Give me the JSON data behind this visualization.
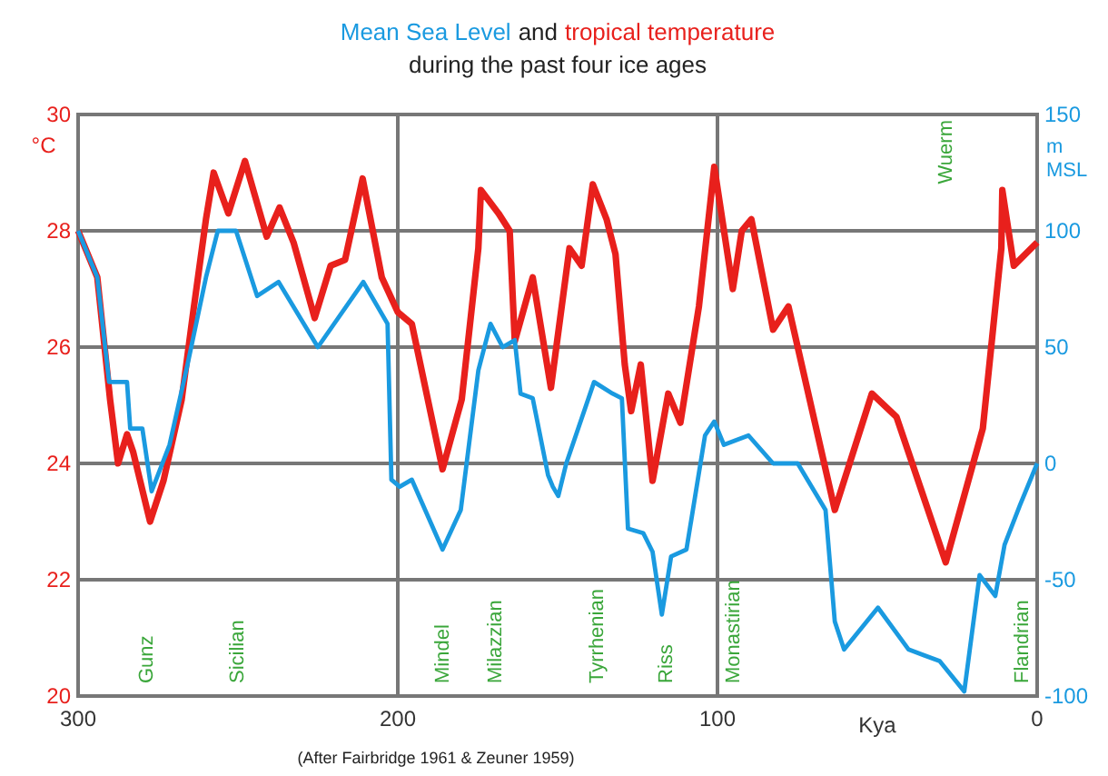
{
  "chart_data": {
    "type": "line",
    "title": "during the past four ice ages",
    "xlabel": "Kya",
    "ylabel": "°C",
    "y2label": "m MSL",
    "xlim": [
      300,
      0
    ],
    "xticks": [
      300,
      200,
      100,
      0
    ],
    "ylim": [
      20,
      30
    ],
    "yticks": [
      20,
      22,
      24,
      26,
      28,
      30
    ],
    "y2lim": [
      -100,
      150
    ],
    "y2ticks": [
      -100,
      -50,
      0,
      50,
      100,
      150
    ],
    "grid": true,
    "legend": "top",
    "line_style": "solid",
    "marker": "none",
    "series": [
      {
        "name": "tropical temperature",
        "color": "#e8201c",
        "x": [
          300,
          294,
          290,
          287.5,
          284.7,
          282.8,
          277.5,
          273.3,
          267.6,
          264,
          260,
          257.6,
          253,
          247.8,
          241,
          237,
          232.6,
          226,
          221,
          216.5,
          211,
          205,
          200,
          195.6,
          186,
          180,
          174.8,
          174,
          168.5,
          165,
          163.4,
          157.8,
          152.1,
          146.3,
          142.5,
          139,
          134.7,
          131.9,
          129,
          127,
          124,
          120.3,
          115.4,
          111.6,
          105.8,
          101,
          95.2,
          92.4,
          89.4,
          82.6,
          77.8,
          63.3,
          51.7,
          44,
          28.6,
          17,
          11.2,
          10.9,
          7.3,
          0
        ],
        "values": [
          28,
          27.2,
          25.1,
          24,
          24.5,
          24.2,
          23,
          23.7,
          25.1,
          26.6,
          28.2,
          29,
          28.3,
          29.2,
          27.9,
          28.4,
          27.8,
          26.5,
          27.4,
          27.5,
          28.9,
          27.2,
          26.6,
          26.4,
          23.9,
          25.1,
          27.7,
          28.7,
          28.3,
          28,
          26.1,
          27.2,
          25.3,
          27.7,
          27.4,
          28.8,
          28.2,
          27.6,
          25.7,
          24.9,
          25.7,
          23.7,
          25.2,
          24.7,
          26.7,
          29.1,
          27,
          28,
          28.2,
          26.3,
          26.7,
          23.2,
          25.2,
          24.8,
          22.3,
          24.6,
          27.7,
          28.7,
          27.4,
          27.8
        ]
      },
      {
        "name": "Mean Sea Level",
        "color": "#1a9ae0",
        "axis": "y2",
        "x": [
          300,
          294,
          290.3,
          284.7,
          283.7,
          279.9,
          277,
          271.4,
          265.7,
          260,
          256.3,
          250.6,
          244,
          237.3,
          225,
          210.8,
          203.2,
          202,
          199.4,
          195.6,
          186,
          180.3,
          174.8,
          171,
          167.2,
          163.4,
          161.6,
          157.8,
          153,
          151.5,
          149.8,
          147.3,
          138.6,
          132.8,
          129.9,
          128,
          123.2,
          120.3,
          117.4,
          114.5,
          109.7,
          103.9,
          101,
          98,
          90.3,
          82.6,
          74.9,
          66.2,
          63.3,
          60.4,
          49.8,
          40.2,
          30.5,
          22.8,
          18,
          13.1,
          10.2,
          5.4,
          0
        ],
        "values": [
          100,
          80,
          35,
          35,
          15,
          15,
          -12,
          8,
          43,
          80,
          100,
          100,
          72,
          78,
          50,
          78,
          60,
          -7,
          -10,
          -7,
          -37,
          -20,
          40,
          60,
          50,
          53,
          30,
          28,
          -5,
          -10,
          -14,
          0,
          35,
          30,
          28,
          -28,
          -30,
          -38,
          -65,
          -40,
          -37,
          12,
          18,
          8,
          12,
          0,
          0,
          -20,
          -68,
          -80,
          -62,
          -80,
          -85,
          -98,
          -48,
          -57,
          -35,
          -18,
          0
        ]
      }
    ],
    "annotations": [
      "and",
      "Gunz",
      "Sicilian",
      "Mindel",
      "Milazzian",
      "Tyrrhenian",
      "Riss",
      "Monastirian",
      "Wuerm",
      "Flandrian",
      "(After Fairbridge 1961 & Zeuner 1959)"
    ]
  }
}
